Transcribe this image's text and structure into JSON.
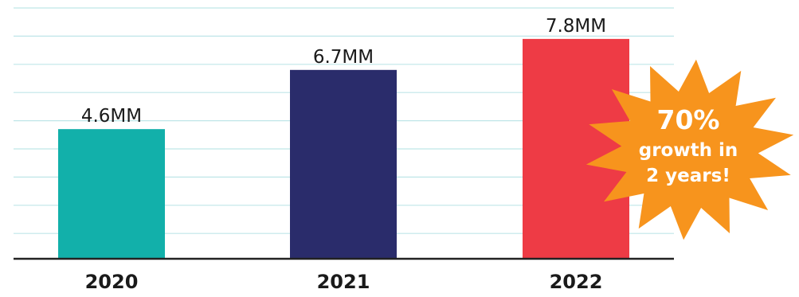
{
  "chart_data": {
    "type": "bar",
    "categories": [
      "2020",
      "2021",
      "2022"
    ],
    "values": [
      4.6,
      6.7,
      7.8
    ],
    "data_labels": [
      "4.6MM",
      "6.7MM",
      "7.8MM"
    ],
    "title": "",
    "xlabel": "",
    "ylabel": "",
    "ylim": [
      0,
      8.6
    ],
    "grid": true,
    "bar_colors": [
      "#12b0aa",
      "#2a2c6b",
      "#ee3b45"
    ],
    "grid_color": "#bfe6e8",
    "axis_color": "#222222",
    "label_color": "#1a1a1a"
  },
  "callout": {
    "shape": "starburst",
    "color": "#f7941d",
    "text_color": "#ffffff",
    "lines": [
      "70%",
      "growth in",
      "2 years!"
    ]
  }
}
